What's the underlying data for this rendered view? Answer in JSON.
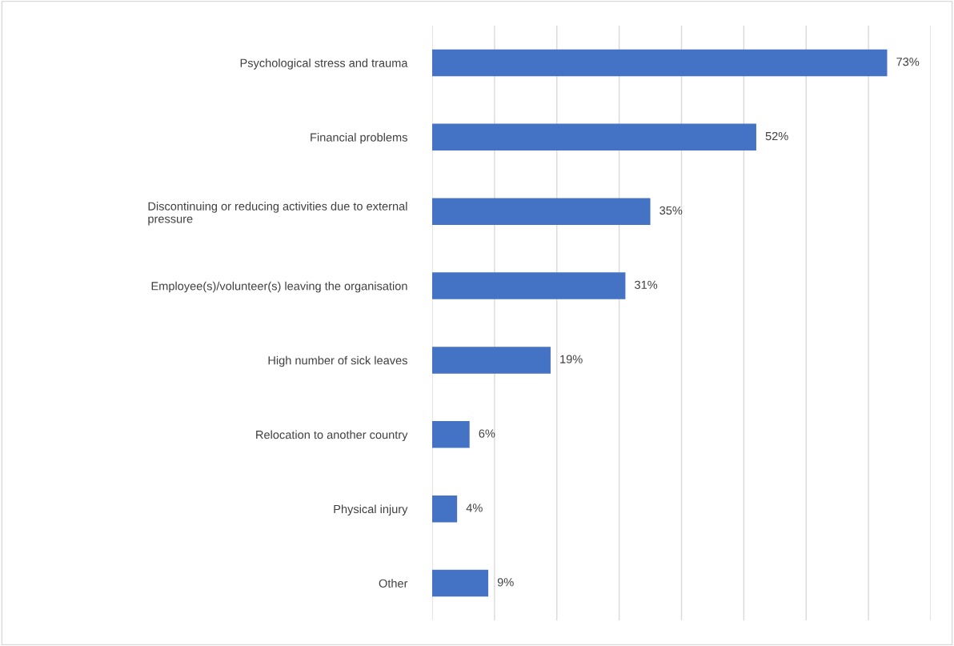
{
  "chart_data": {
    "type": "bar",
    "orientation": "horizontal",
    "categories": [
      "Psychological stress and trauma",
      "Financial problems",
      "Discontinuing or reducing activities due to external pressure",
      "Employee(s)/volunteer(s) leaving the organisation",
      "High number of sick leaves",
      "Relocation to another country",
      "Physical injury",
      "Other"
    ],
    "values": [
      73,
      52,
      35,
      31,
      19,
      6,
      4,
      9
    ],
    "value_labels": [
      "73%",
      "52%",
      "35%",
      "31%",
      "19%",
      "6%",
      "4%",
      "9%"
    ],
    "color": "#4472c4",
    "xlim": [
      0,
      80
    ],
    "xticks": [
      {
        "value": 0,
        "label": null
      },
      {
        "value": 10,
        "label": null
      },
      {
        "value": 20,
        "label": null
      },
      {
        "value": 30,
        "label": null
      },
      {
        "value": 40,
        "label": null
      },
      {
        "value": 50,
        "label": null
      },
      {
        "value": 60,
        "label": null
      },
      {
        "value": 70,
        "label": null
      },
      {
        "value": 80,
        "label": null
      }
    ],
    "grid": "x",
    "tick_labels": "y",
    "legend": false
  }
}
